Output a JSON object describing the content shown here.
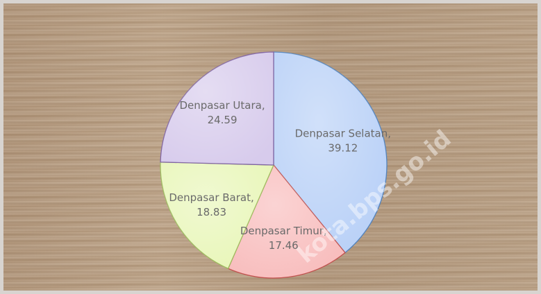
{
  "chart_data": {
    "type": "pie",
    "categories": [
      "Denpasar Selatan",
      "Denpasar Timur",
      "Denpasar Barat",
      "Denpasar Utara"
    ],
    "values": [
      39.12,
      17.46,
      18.83,
      24.59
    ],
    "colors": [
      "#b8d0f7",
      "#f8bcbc",
      "#e8f6b8",
      "#d7cbec"
    ],
    "border_colors": [
      "#4f81bd",
      "#c0504d",
      "#9bbb59",
      "#8064a2"
    ],
    "label_separator": ",",
    "watermark": "kota.bps.go.id"
  }
}
